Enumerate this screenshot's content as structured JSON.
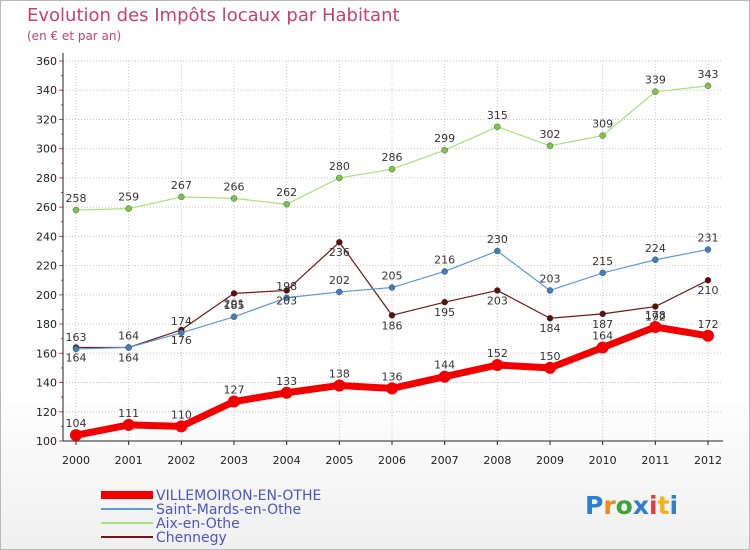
{
  "header": {
    "title": "Evolution des Impôts locaux par Habitant",
    "subtitle": "(en € et par an)"
  },
  "logo": {
    "text": "Proxiti",
    "colors": [
      "#2e7fd0",
      "#f08a1c",
      "#3aa53a",
      "#2e7fd0",
      "#e03c3c",
      "#f0b41c",
      "#2e7fd0"
    ]
  },
  "chart_data": {
    "type": "line",
    "title": "Evolution des Impôts locaux par Habitant",
    "subtitle": "(en € et par an)",
    "xlabel": "",
    "ylabel": "",
    "x": [
      "2000",
      "2001",
      "2002",
      "2003",
      "2004",
      "2005",
      "2006",
      "2007",
      "2008",
      "2009",
      "2010",
      "2011",
      "2012"
    ],
    "ylim": [
      100,
      360
    ],
    "yticks": [
      100,
      120,
      140,
      160,
      180,
      200,
      220,
      240,
      260,
      280,
      300,
      320,
      340,
      360
    ],
    "grid": "horizontal dotted",
    "legend_position": "bottom-left",
    "series": [
      {
        "name": "Chennegy",
        "color": "#6b1a1a",
        "marker": "#5a1010",
        "width": 1.2,
        "label_below": true,
        "values": [
          164,
          164,
          176,
          201,
          203,
          236,
          186,
          195,
          203,
          184,
          187,
          192,
          210
        ],
        "labels": [
          "164",
          "164",
          "176",
          "201",
          "203",
          "236",
          "186",
          "195",
          "203",
          "184",
          "187",
          "192",
          "210"
        ]
      },
      {
        "name": "Saint-Mards-en-Othe",
        "color": "#5e9ad2",
        "marker": "#3f7fc0",
        "width": 1.2,
        "values": [
          163,
          164,
          174,
          185,
          198,
          202,
          205,
          216,
          230,
          203,
          215,
          224,
          231
        ],
        "labels": [
          "163",
          "164",
          "174",
          "185",
          "198",
          "202",
          "205",
          "216",
          "230",
          "203",
          "215",
          "224",
          "231"
        ]
      },
      {
        "name": "Aix-en-Othe",
        "color": "#a8e07a",
        "marker": "#7cc646",
        "width": 1.2,
        "values": [
          258,
          259,
          267,
          266,
          262,
          280,
          286,
          299,
          315,
          302,
          309,
          339,
          343
        ],
        "labels": [
          "258",
          "259",
          "267",
          "266",
          "262",
          "280",
          "286",
          "299",
          "315",
          "302",
          "309",
          "339",
          "343"
        ]
      },
      {
        "name": "VILLEMOIRON-EN-OTHE",
        "color": "#f20000",
        "marker": "#f20000",
        "width": 7,
        "values": [
          104,
          111,
          110,
          127,
          133,
          138,
          136,
          144,
          152,
          150,
          164,
          178,
          172
        ],
        "labels": [
          "104",
          "111",
          "110",
          "127",
          "133",
          "138",
          "136",
          "144",
          "152",
          "150",
          "164",
          "178",
          "172"
        ]
      }
    ],
    "legend": [
      "VILLEMOIRON-EN-OTHE",
      "Saint-Mards-en-Othe",
      "Aix-en-Othe",
      "Chennegy"
    ]
  }
}
